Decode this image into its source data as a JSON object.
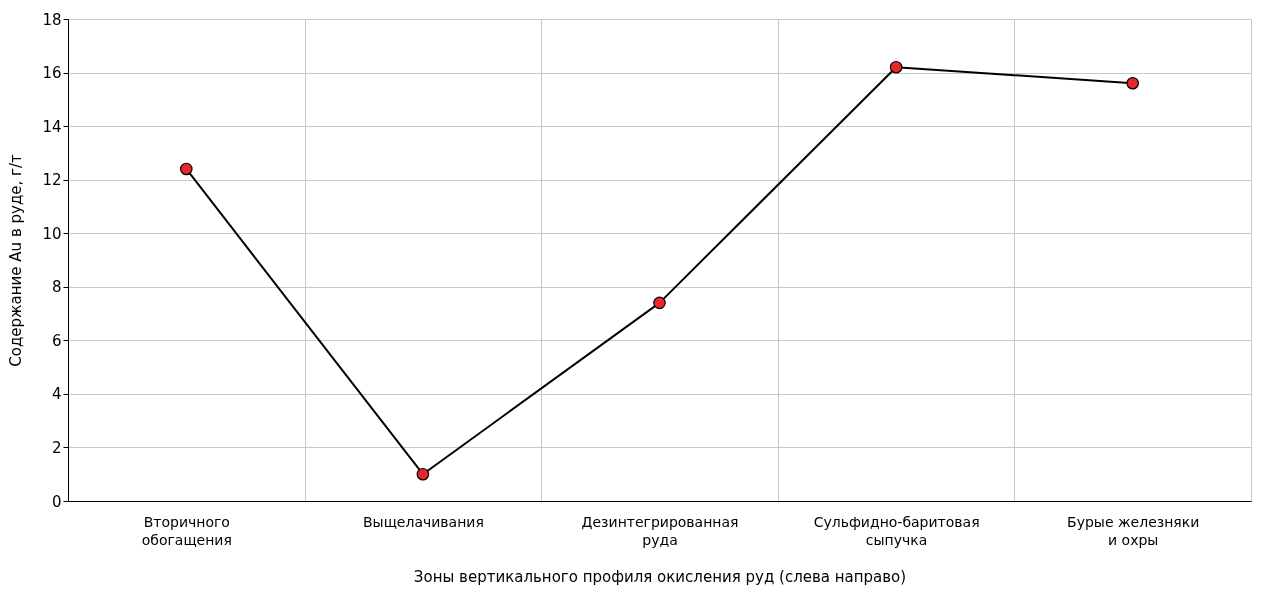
{
  "chart_data": {
    "type": "line",
    "xlabel": "Зоны вертикального профиля окисления руд (слева направо)",
    "ylabel": "Содержание Au в руде, г/т",
    "categories": [
      "Вторичного\nобогащения",
      "Выщелачивания",
      "Дезинтегрированная\nруда",
      "Сульфидно-баритовая\nсыпучка",
      "Бурые железняки\nи охры"
    ],
    "series": [
      {
        "color": "#000000",
        "colors": [
          "#e8262b",
          "#e8262b",
          "#e8262b",
          "#e8262b",
          "#e8262b"
        ],
        "values": [
          12.4,
          1.0,
          7.4,
          16.2,
          15.6
        ]
      }
    ],
    "ylim": [
      0,
      18
    ],
    "yticks": [
      0,
      2,
      4,
      6,
      8,
      10,
      12,
      14,
      16,
      18
    ],
    "grid": true,
    "marker": "circle",
    "line_style": "solid"
  }
}
